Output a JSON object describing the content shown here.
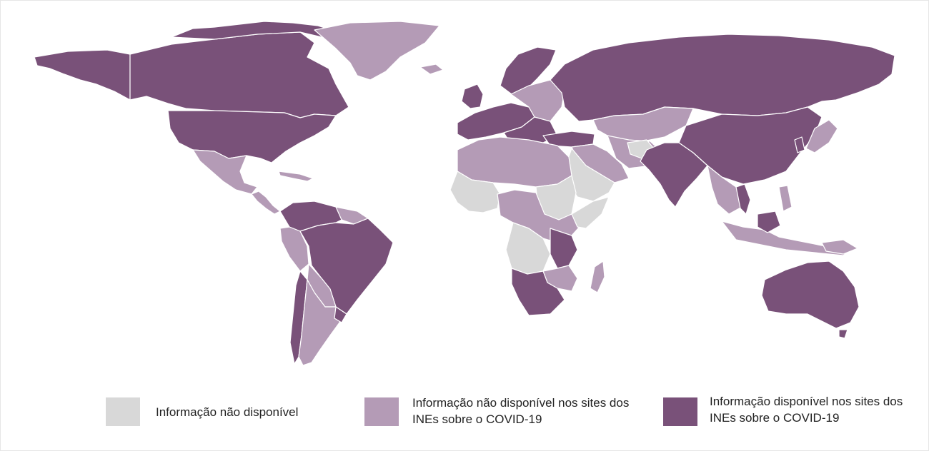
{
  "colors": {
    "not_available": "#d8d8d8",
    "not_on_nso_sites": "#b49bb6",
    "on_nso_sites": "#795179",
    "background": "#ffffff",
    "border": "#ffffff"
  },
  "legend": [
    {
      "key": "not_available",
      "label": "Informação não disponível"
    },
    {
      "key": "not_on_nso_sites",
      "label": "Informação não disponível nos sites dos INEs sobre o COVID-19"
    },
    {
      "key": "on_nso_sites",
      "label": "Informação disponível nos sites dos INEs sobre o COVID-19"
    }
  ]
}
